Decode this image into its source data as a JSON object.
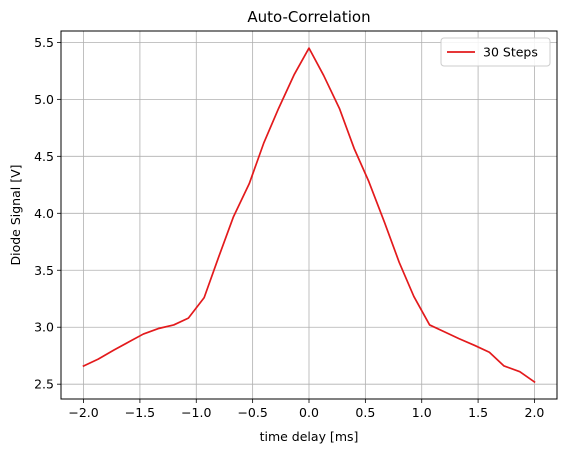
{
  "chart_data": {
    "type": "line",
    "title": "Auto-Correlation",
    "xlabel": "time delay [ms]",
    "ylabel": "Diode Signal [V]",
    "xlim": [
      -2.2,
      2.2
    ],
    "ylim": [
      2.37,
      5.6
    ],
    "xticks": [
      -2.0,
      -1.5,
      -1.0,
      -0.5,
      0.0,
      0.5,
      1.0,
      1.5,
      2.0
    ],
    "xtick_labels": [
      "−2.0",
      "−1.5",
      "−1.0",
      "−0.5",
      "0.0",
      "0.5",
      "1.0",
      "1.5",
      "2.0"
    ],
    "yticks": [
      2.5,
      3.0,
      3.5,
      4.0,
      4.5,
      5.0,
      5.5
    ],
    "ytick_labels": [
      "2.5",
      "3.0",
      "3.5",
      "4.0",
      "4.5",
      "5.0",
      "5.5"
    ],
    "grid": true,
    "legend_position": "top-right",
    "series": [
      {
        "name": "30 Steps",
        "color": "#e31a1c",
        "x": [
          -2.0,
          -1.87,
          -1.73,
          -1.6,
          -1.47,
          -1.33,
          -1.2,
          -1.07,
          -0.93,
          -0.8,
          -0.67,
          -0.53,
          -0.4,
          -0.27,
          -0.13,
          0.0,
          0.13,
          0.27,
          0.4,
          0.53,
          0.67,
          0.8,
          0.93,
          1.07,
          1.2,
          1.33,
          1.47,
          1.6,
          1.73,
          1.87,
          2.0
        ],
        "y": [
          2.66,
          2.72,
          2.8,
          2.87,
          2.94,
          2.99,
          3.02,
          3.08,
          3.26,
          3.62,
          3.97,
          4.26,
          4.62,
          4.92,
          5.22,
          5.45,
          5.21,
          4.92,
          4.57,
          4.28,
          3.92,
          3.57,
          3.27,
          3.02,
          2.96,
          2.9,
          2.84,
          2.78,
          2.66,
          2.61,
          2.52
        ]
      }
    ]
  }
}
